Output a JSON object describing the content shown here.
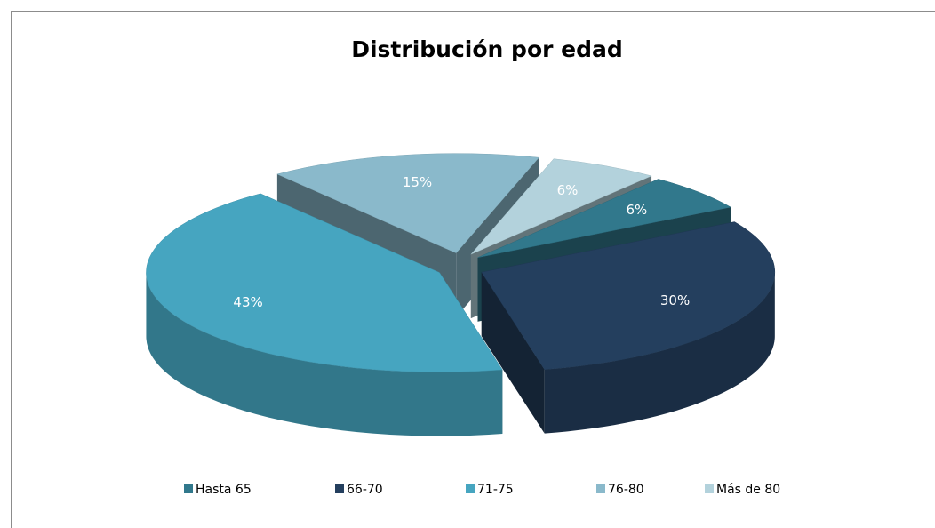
{
  "chart_data": {
    "type": "pie",
    "title": "Distribución por edad",
    "categories": [
      "Hasta 65",
      "66-70",
      "71-75",
      "76-80",
      "Más de 80"
    ],
    "values": [
      6,
      30,
      43,
      15,
      6
    ],
    "value_labels": [
      "6%",
      "30%",
      "43%",
      "15%",
      "6%"
    ],
    "colors": [
      "#31788c",
      "#243f5e",
      "#46a5c0",
      "#8ab9cb",
      "#b3d2dc"
    ],
    "legend": "bottom"
  }
}
